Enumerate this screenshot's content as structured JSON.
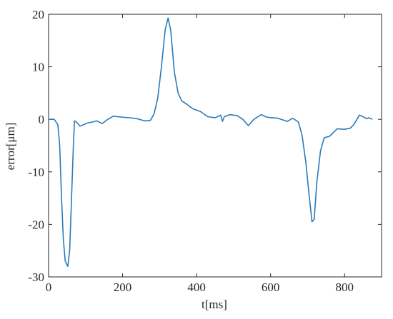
{
  "chart_data": {
    "type": "line",
    "x_label": "t[ms]",
    "y_label": "error[μm]",
    "x": [
      0,
      15,
      25,
      30,
      35,
      40,
      45,
      52,
      57,
      62,
      67,
      70,
      75,
      85,
      95,
      105,
      120,
      130,
      145,
      160,
      175,
      200,
      220,
      240,
      260,
      275,
      285,
      295,
      305,
      315,
      323,
      330,
      340,
      350,
      360,
      375,
      390,
      410,
      430,
      450,
      465,
      470,
      475,
      490,
      510,
      525,
      540,
      555,
      575,
      590,
      620,
      645,
      660,
      675,
      685,
      695,
      705,
      712,
      718,
      725,
      735,
      745,
      760,
      780,
      800,
      815,
      825,
      840,
      850,
      860,
      865,
      875
    ],
    "series": [
      {
        "color": "#2a7ab8",
        "values": [
          0,
          0,
          -1,
          -5,
          -15,
          -23,
          -27,
          -28,
          -25,
          -15,
          -5,
          -0.3,
          -0.5,
          -1.3,
          -1,
          -0.7,
          -0.5,
          -0.3,
          -0.8,
          0,
          0.6,
          0.4,
          0.3,
          0.1,
          -0.3,
          -0.2,
          1,
          4,
          10,
          17,
          19.3,
          17,
          9,
          5,
          3.5,
          2.8,
          2,
          1.5,
          0.5,
          0.3,
          0.8,
          -0.4,
          0.5,
          0.9,
          0.7,
          0,
          -1.2,
          0,
          0.9,
          0.4,
          0.2,
          -0.4,
          0.2,
          -0.5,
          -3,
          -8,
          -15,
          -19.5,
          -19,
          -12,
          -6,
          -3.5,
          -3.2,
          -1.8,
          -1.9,
          -1.7,
          -1,
          0.8,
          0.5,
          0.1,
          0.3,
          0
        ]
      }
    ],
    "xlim": [
      0,
      900
    ],
    "xticks": [
      0,
      200,
      400,
      600,
      800
    ],
    "ylim": [
      -30,
      20
    ],
    "yticks": [
      -30,
      -20,
      -10,
      0,
      10,
      20
    ]
  }
}
